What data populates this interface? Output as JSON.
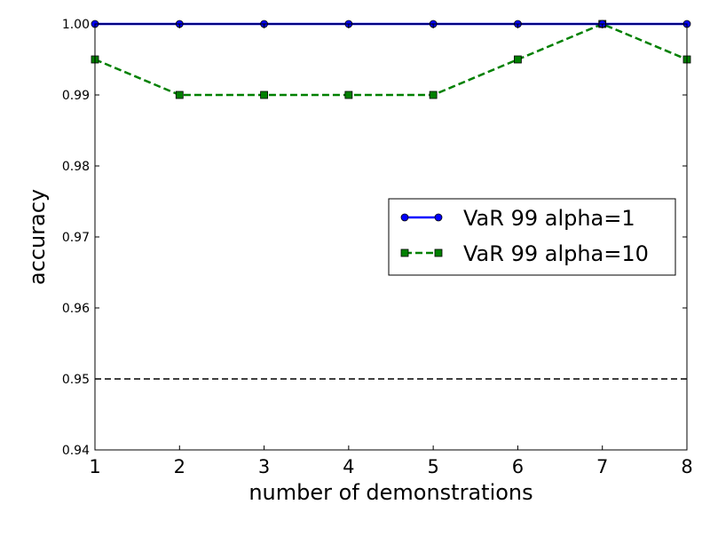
{
  "chart_data": {
    "type": "line",
    "title": "",
    "xlabel": "number of demonstrations",
    "ylabel": "accuracy",
    "x": [
      1,
      2,
      3,
      4,
      5,
      6,
      7,
      8
    ],
    "xlim": [
      1,
      8
    ],
    "ylim": [
      0.94,
      1.0
    ],
    "x_ticks": [
      1,
      2,
      3,
      4,
      5,
      6,
      7,
      8
    ],
    "y_ticks": [
      0.94,
      0.95,
      0.96,
      0.97,
      0.98,
      0.99,
      1.0
    ],
    "y_tick_labels": [
      "0.94",
      "0.95",
      "0.96",
      "0.97",
      "0.98",
      "0.99",
      "1.00"
    ],
    "grid": false,
    "legend_position": "center-right",
    "series": [
      {
        "name": "VaR 99 alpha=1",
        "values": [
          1.0,
          1.0,
          1.0,
          1.0,
          1.0,
          1.0,
          1.0,
          1.0
        ],
        "color": "#0000ff",
        "line_style": "solid",
        "marker": "circle"
      },
      {
        "name": "VaR 99 alpha=10",
        "values": [
          0.995,
          0.99,
          0.99,
          0.99,
          0.99,
          0.995,
          1.0,
          0.995
        ],
        "color": "#008000",
        "line_style": "dashed",
        "marker": "square"
      }
    ],
    "reference_lines": [
      {
        "y": 0.95,
        "color": "#000000",
        "line_style": "dashed"
      }
    ]
  }
}
